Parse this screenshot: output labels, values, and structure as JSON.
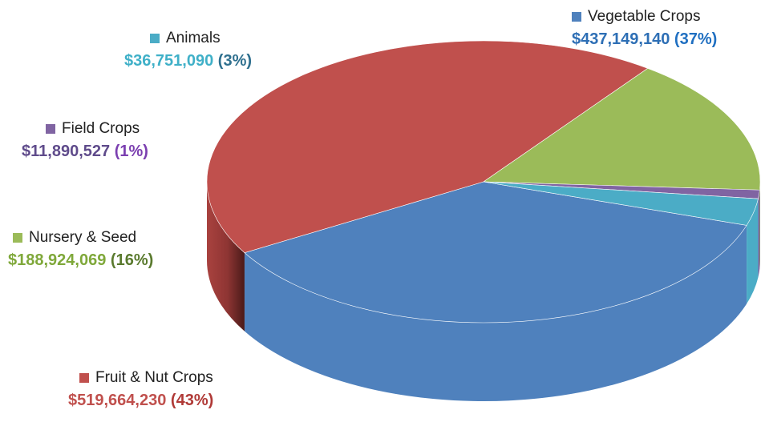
{
  "chart_data": {
    "type": "pie",
    "title": "",
    "view": "3d",
    "slices": [
      {
        "label": "Vegetable Crops",
        "value": 437149140,
        "value_text": "$437,149,140",
        "percent_text": "(37%)",
        "color": "#4f81bd",
        "value_color": "#2e6fb5",
        "percent_color": "#1f6fc1"
      },
      {
        "label": "Fruit & Nut Crops",
        "value": 519664230,
        "value_text": "$519,664,230",
        "percent_text": "(43%)",
        "color": "#c0504d",
        "value_color": "#c0504d",
        "percent_color": "#b03a37"
      },
      {
        "label": "Nursery & Seed",
        "value": 188924069,
        "value_text": "$188,924,069",
        "percent_text": "(16%)",
        "color": "#9bbb59",
        "value_color": "#7fa83a",
        "percent_color": "#5a7a2e"
      },
      {
        "label": "Field Crops",
        "value": 11890527,
        "value_text": "$11,890,527",
        "percent_text": "(1%)",
        "color": "#8064a2",
        "value_color": "#5f4b8b",
        "percent_color": "#7b3fb0"
      },
      {
        "label": "Animals",
        "value": 36751090,
        "value_text": "$36,751,090",
        "percent_text": "(3%)",
        "color": "#4bacc6",
        "value_color": "#3fb0c8",
        "percent_color": "#2e6f8e"
      }
    ]
  }
}
